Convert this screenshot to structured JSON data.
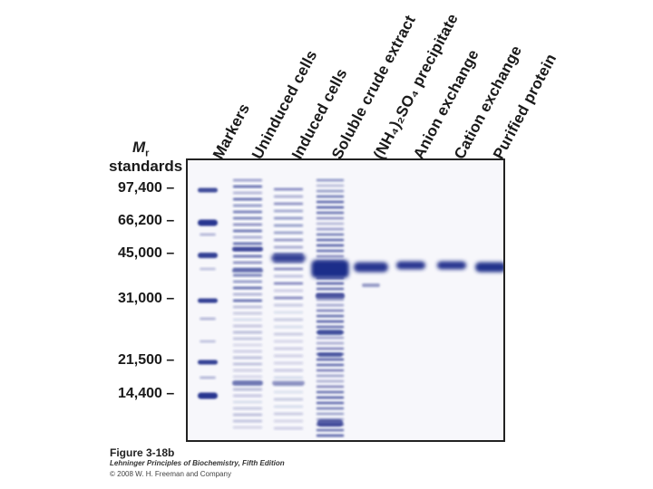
{
  "lane_labels": [
    "Markers",
    "Uninduced cells",
    "Induced cells",
    "Soluble crude extract",
    "(NH₄)₂SO₄ precipitate",
    "Anion exchange",
    "Cation exchange",
    "Purified protein"
  ],
  "mr": {
    "symbol": "M",
    "subscript": "r",
    "standards_label": "standards"
  },
  "mw_markers": [
    {
      "label": "97,400 –",
      "value": 97400
    },
    {
      "label": "66,200 –",
      "value": 66200
    },
    {
      "label": "45,000 –",
      "value": 45000
    },
    {
      "label": "31,000 –",
      "value": 31000
    },
    {
      "label": "21,500 –",
      "value": 21500
    },
    {
      "label": "14,400 –",
      "value": 14400
    }
  ],
  "caption": {
    "title": "Figure 3-18b",
    "book": "Lehninger Principles of Biochemistry, Fifth Edition",
    "copyright": "© 2008 W. H. Freeman and Company"
  },
  "colors": {
    "gel_background": "#f7f7fb",
    "band_dark": "#1f2d8a",
    "band_light": "#a7acd6"
  }
}
